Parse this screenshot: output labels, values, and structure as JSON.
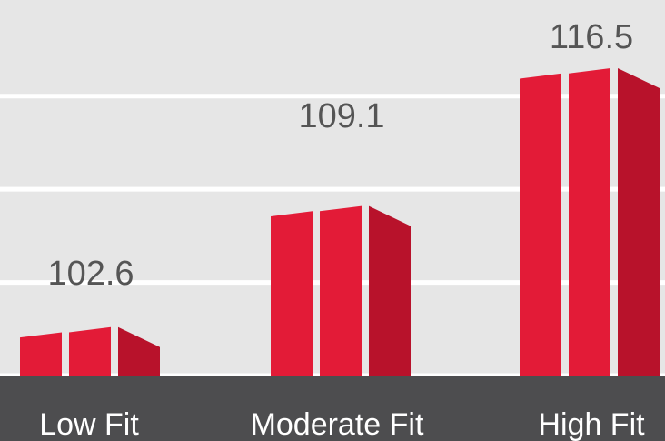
{
  "chart_data": {
    "type": "bar",
    "categories": [
      "Low Fit",
      "Moderate Fit",
      "High Fit"
    ],
    "values": [
      102.6,
      109.1,
      116.5
    ],
    "value_labels": [
      "102.6",
      "109.1",
      "116.5"
    ],
    "title": "",
    "xlabel": "",
    "ylabel": "",
    "ylim": [
      100,
      118
    ],
    "gridlines": [
      100,
      105,
      110,
      115
    ],
    "grid": true,
    "legend": "none",
    "colors": {
      "bar_front": "#e31b37",
      "bar_side": "#b8122b",
      "background": "#e6e6e6",
      "grid": "#ffffff",
      "axis_band": "#4d4d4f",
      "value_text": "#555555",
      "category_text": "#ffffff"
    }
  }
}
